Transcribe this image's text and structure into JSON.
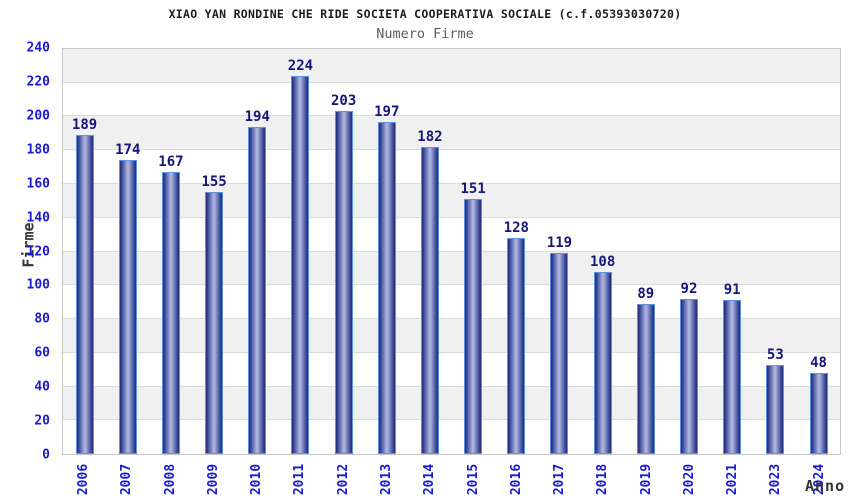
{
  "chart_data": {
    "type": "bar",
    "title": "XIAO YAN RONDINE CHE RIDE SOCIETA COOPERATIVA SOCIALE (c.f.05393030720)",
    "subtitle": "Numero Firme",
    "xlabel": "Anno",
    "ylabel": "Firme",
    "categories": [
      "2006",
      "2007",
      "2008",
      "2009",
      "2010",
      "2011",
      "2012",
      "2013",
      "2014",
      "2015",
      "2016",
      "2017",
      "2018",
      "2019",
      "2020",
      "2021",
      "2023",
      "2024"
    ],
    "values": [
      189,
      174,
      167,
      155,
      194,
      224,
      203,
      197,
      182,
      151,
      128,
      119,
      108,
      89,
      92,
      91,
      53,
      48
    ],
    "ylim": [
      0,
      240
    ],
    "ytick_step": 20,
    "ytick_labels": [
      "0",
      "20",
      "40",
      "60",
      "80",
      "100",
      "120",
      "140",
      "160",
      "180",
      "200",
      "220",
      "240"
    ],
    "grid": "horizontal gridlines every 20 units with alternating gray/white row bands (gray band at top)",
    "legend": "none",
    "colors": {
      "title_color": "#1c1c1c",
      "subtitle_color": "#5e5e5e",
      "tick_color": "#1a1ad0",
      "value_color": "#16167a",
      "axis_title_color": "#333333",
      "bar_dark": "#1f2878",
      "bar_mid": "#4d5ba6",
      "bar_light": "#b4bce2",
      "bar_border": "#5e93e3",
      "band_gray": "#f0f0f0",
      "band_white": "#ffffff",
      "gridline": "#dcdcdc",
      "plot_border": "#c8c8c8"
    }
  }
}
